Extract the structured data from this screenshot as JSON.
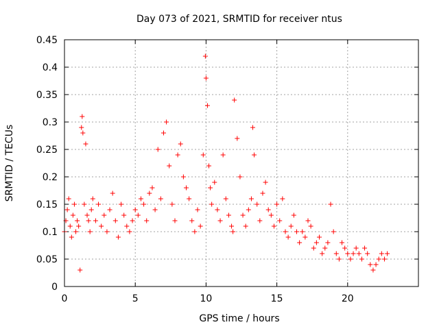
{
  "chart_data": {
    "type": "scatter",
    "title": "Day 073 of 2021, SRMTID for receiver ntus",
    "xlabel": "GPS time / hours",
    "ylabel": "SRMTID / TECUs",
    "xlim": [
      0,
      25
    ],
    "ylim": [
      0,
      0.45
    ],
    "xticks": [
      0,
      5,
      10,
      15,
      20
    ],
    "xtick_labels": [
      "0",
      "5",
      "10",
      "15",
      "20"
    ],
    "yticks": [
      0,
      0.05,
      0.1,
      0.15,
      0.2,
      0.25,
      0.3,
      0.35,
      0.4,
      0.45
    ],
    "ytick_labels": [
      "0",
      "0.05",
      "0.1",
      "0.15",
      "0.2",
      "0.25",
      "0.3",
      "0.35",
      "0.4",
      "0.45"
    ],
    "grid": true,
    "marker": "+",
    "marker_color": "#ff0000",
    "series": [
      {
        "name": "SRMTID",
        "x": [
          0.0,
          0.1,
          0.2,
          0.3,
          0.4,
          0.5,
          0.6,
          0.7,
          0.8,
          0.9,
          1.0,
          1.1,
          1.2,
          1.25,
          1.3,
          1.4,
          1.5,
          1.6,
          1.7,
          1.8,
          1.9,
          2.0,
          2.2,
          2.4,
          2.6,
          2.8,
          3.0,
          3.2,
          3.4,
          3.6,
          3.8,
          4.0,
          4.2,
          4.4,
          4.6,
          4.8,
          5.0,
          5.2,
          5.4,
          5.6,
          5.8,
          6.0,
          6.2,
          6.4,
          6.6,
          6.8,
          7.0,
          7.2,
          7.4,
          7.6,
          7.8,
          8.0,
          8.2,
          8.4,
          8.6,
          8.8,
          9.0,
          9.2,
          9.4,
          9.6,
          9.8,
          9.95,
          10.0,
          10.1,
          10.2,
          10.3,
          10.4,
          10.6,
          10.8,
          11.0,
          11.2,
          11.4,
          11.6,
          11.8,
          11.9,
          12.0,
          12.2,
          12.4,
          12.6,
          12.8,
          13.0,
          13.2,
          13.3,
          13.4,
          13.6,
          13.8,
          14.0,
          14.2,
          14.4,
          14.6,
          14.8,
          15.0,
          15.2,
          15.4,
          15.6,
          15.8,
          16.0,
          16.2,
          16.4,
          16.6,
          16.8,
          17.0,
          17.2,
          17.4,
          17.6,
          17.8,
          18.0,
          18.2,
          18.4,
          18.6,
          18.8,
          19.0,
          19.2,
          19.4,
          19.6,
          19.8,
          20.0,
          20.2,
          20.4,
          20.6,
          20.8,
          21.0,
          21.2,
          21.4,
          21.6,
          21.8,
          22.0,
          22.2,
          22.4,
          22.6,
          22.8
        ],
        "y": [
          0.1,
          0.12,
          0.14,
          0.16,
          0.11,
          0.09,
          0.13,
          0.15,
          0.1,
          0.12,
          0.11,
          0.03,
          0.29,
          0.31,
          0.28,
          0.15,
          0.26,
          0.13,
          0.12,
          0.1,
          0.14,
          0.16,
          0.12,
          0.15,
          0.11,
          0.13,
          0.1,
          0.14,
          0.17,
          0.12,
          0.09,
          0.15,
          0.13,
          0.11,
          0.1,
          0.12,
          0.14,
          0.13,
          0.16,
          0.15,
          0.12,
          0.17,
          0.18,
          0.14,
          0.25,
          0.16,
          0.28,
          0.3,
          0.22,
          0.15,
          0.12,
          0.24,
          0.26,
          0.2,
          0.18,
          0.16,
          0.12,
          0.1,
          0.14,
          0.11,
          0.24,
          0.42,
          0.38,
          0.33,
          0.22,
          0.18,
          0.15,
          0.19,
          0.14,
          0.12,
          0.24,
          0.16,
          0.13,
          0.11,
          0.1,
          0.34,
          0.27,
          0.2,
          0.13,
          0.11,
          0.14,
          0.16,
          0.29,
          0.24,
          0.15,
          0.12,
          0.17,
          0.19,
          0.14,
          0.13,
          0.11,
          0.15,
          0.12,
          0.16,
          0.1,
          0.09,
          0.11,
          0.13,
          0.1,
          0.08,
          0.1,
          0.09,
          0.12,
          0.11,
          0.07,
          0.08,
          0.09,
          0.06,
          0.07,
          0.08,
          0.15,
          0.1,
          0.06,
          0.05,
          0.08,
          0.07,
          0.06,
          0.05,
          0.06,
          0.07,
          0.06,
          0.05,
          0.07,
          0.06,
          0.04,
          0.03,
          0.04,
          0.05,
          0.06,
          0.05,
          0.06
        ]
      }
    ]
  }
}
